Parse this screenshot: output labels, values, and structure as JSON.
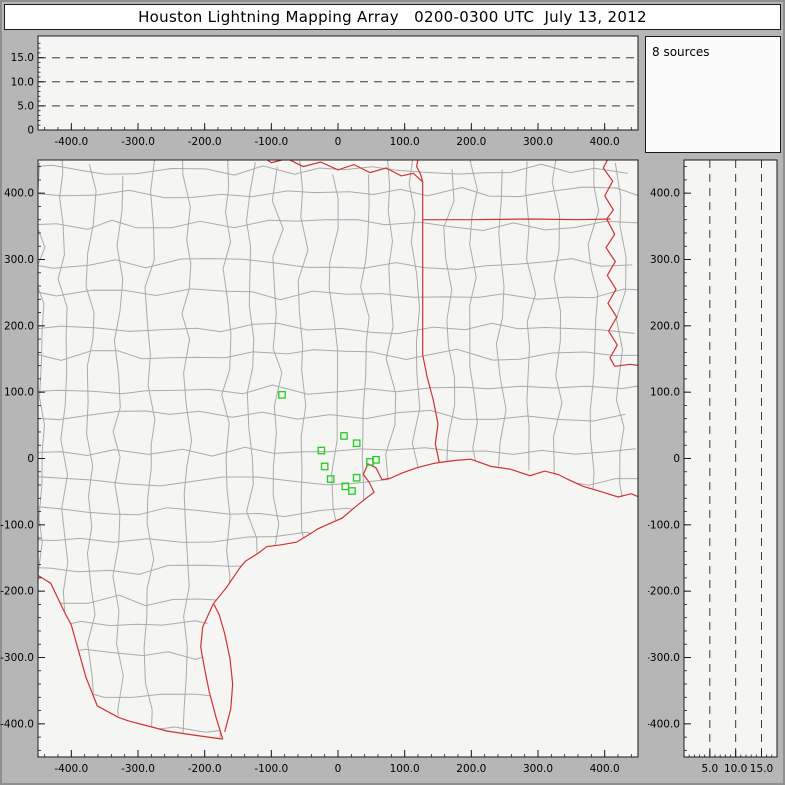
{
  "title": "Houston Lightning Mapping Array   0200-0300 UTC  July 13, 2012",
  "sources_box": {
    "label": "8 sources"
  },
  "colors": {
    "frame_gray": "#b6b6b6",
    "plot_bg": "#f5f5f4",
    "panel_border": "#1a1a1a",
    "county_gray": "#aaaaaa",
    "state_red": "#cc3333",
    "station_green": "#22cc22",
    "dash_dark": "#3a3a3a"
  },
  "chart_data": [
    {
      "type": "scatter",
      "name": "altitude_vs_eastwest",
      "xlim": [
        -450,
        450
      ],
      "ylim": [
        0,
        19.5
      ],
      "x_ticks": [
        -400,
        -300,
        -200,
        -100,
        0,
        100,
        200,
        300,
        400
      ],
      "x_tick_labels": [
        "-400.0",
        "-300.0",
        "-200.0",
        "-100.0",
        "0",
        "100.0",
        "200.0",
        "300.0",
        "400.0"
      ],
      "y_ticks": [
        0,
        5,
        10,
        15
      ],
      "y_tick_labels": [
        "0",
        "5.0",
        "10.0",
        "15.0"
      ],
      "dashed_y": [
        5,
        10,
        15
      ],
      "points": []
    },
    {
      "type": "scatter",
      "name": "plan_view_map",
      "xlim": [
        -450,
        450
      ],
      "ylim": [
        -450,
        450
      ],
      "x_ticks": [
        -400,
        -300,
        -200,
        -100,
        0,
        100,
        200,
        300,
        400
      ],
      "x_tick_labels": [
        "-400.0",
        "-300.0",
        "-200.0",
        "-100.0",
        "0",
        "100.0",
        "200.0",
        "300.0",
        "400.0"
      ],
      "y_ticks": [
        400,
        300,
        200,
        100,
        0,
        -100,
        -200,
        -300,
        -400
      ],
      "y_tick_labels": [
        "400.0",
        "300.0",
        "200.0",
        "100.0",
        "0",
        "-100.0",
        "-200.0",
        "-300.0",
        "-400.0"
      ],
      "stations": [
        [
          -84,
          96
        ],
        [
          -25,
          12
        ],
        [
          9,
          34
        ],
        [
          28,
          23
        ],
        [
          -20,
          -12
        ],
        [
          -11,
          -31
        ],
        [
          11,
          -42
        ],
        [
          28,
          -29
        ],
        [
          21,
          -49
        ],
        [
          48,
          -5
        ],
        [
          57,
          -2
        ]
      ],
      "land_polygon": [
        [
          -460,
          460
        ],
        [
          -460,
          -170
        ],
        [
          -431,
          -188
        ],
        [
          -400,
          -251
        ],
        [
          -361,
          -373
        ],
        [
          -313,
          -396
        ],
        [
          -256,
          -411
        ],
        [
          -173,
          -423
        ],
        [
          -193,
          -352
        ],
        [
          -206,
          -284
        ],
        [
          -187,
          -219
        ],
        [
          -139,
          -155
        ],
        [
          -107,
          -133
        ],
        [
          -62,
          -126
        ],
        [
          -30,
          -106
        ],
        [
          6,
          -90
        ],
        [
          54,
          -51
        ],
        [
          78,
          -30
        ],
        [
          141,
          -8
        ],
        [
          199,
          -1
        ],
        [
          258,
          -16
        ],
        [
          310,
          -19
        ],
        [
          368,
          -42
        ],
        [
          420,
          -58
        ],
        [
          460,
          -62
        ],
        [
          460,
          460
        ]
      ],
      "borders": [
        {
          "name": "rio-grande",
          "points": [
            [
              -460,
              -170
            ],
            [
              -431,
              -188
            ],
            [
              -411,
              -230
            ],
            [
              -400,
              -251
            ],
            [
              -378,
              -330
            ],
            [
              -361,
              -373
            ],
            [
              -330,
              -390
            ],
            [
              -313,
              -396
            ],
            [
              -282,
              -404
            ],
            [
              -256,
              -411
            ],
            [
              -216,
              -417
            ],
            [
              -173,
              -423
            ]
          ]
        },
        {
          "name": "red-river",
          "points": [
            [
              -120,
              460
            ],
            [
              -100,
              446
            ],
            [
              -76,
              452
            ],
            [
              -52,
              440
            ],
            [
              -26,
              447
            ],
            [
              0,
              435
            ],
            [
              24,
              443
            ],
            [
              48,
              431
            ],
            [
              72,
              438
            ],
            [
              95,
              426
            ],
            [
              113,
              430
            ],
            [
              127,
              417
            ]
          ]
        },
        {
          "name": "ok-ar-border",
          "points": [
            [
              121,
              460
            ],
            [
              118,
              440
            ],
            [
              124,
              428
            ],
            [
              127,
              417
            ]
          ]
        },
        {
          "name": "tx-east-border",
          "points": [
            [
              127,
              417
            ],
            [
              127,
              360
            ],
            [
              127,
              156
            ]
          ]
        },
        {
          "name": "sabine-river",
          "points": [
            [
              127,
              156
            ],
            [
              134,
              122
            ],
            [
              143,
              88
            ],
            [
              150,
              52
            ],
            [
              146,
              22
            ],
            [
              152,
              -6
            ]
          ]
        },
        {
          "name": "ar-la-border",
          "points": [
            [
              127,
              360
            ],
            [
              200,
              360
            ],
            [
              290,
              361
            ],
            [
              360,
              360
            ],
            [
              409,
              361
            ]
          ]
        },
        {
          "name": "mississippi-river",
          "points": [
            [
              409,
              460
            ],
            [
              398,
              438
            ],
            [
              412,
              418
            ],
            [
              400,
              396
            ],
            [
              413,
              375
            ],
            [
              403,
              361
            ],
            [
              415,
              338
            ],
            [
              402,
              318
            ],
            [
              416,
              297
            ],
            [
              404,
              276
            ],
            [
              417,
              255
            ],
            [
              405,
              234
            ],
            [
              418,
              213
            ],
            [
              406,
              192
            ],
            [
              419,
              171
            ],
            [
              408,
              152
            ],
            [
              415,
              139
            ]
          ]
        },
        {
          "name": "la-ms-border",
          "points": [
            [
              415,
              139
            ],
            [
              438,
              142
            ],
            [
              460,
              139
            ]
          ]
        },
        {
          "name": "gulf-coastline",
          "points": [
            [
              -173,
              -423
            ],
            [
              -183,
              -390
            ],
            [
              -193,
              -352
            ],
            [
              -200,
              -318
            ],
            [
              -206,
              -284
            ],
            [
              -203,
              -254
            ],
            [
              -187,
              -219
            ],
            [
              -167,
              -194
            ],
            [
              -148,
              -166
            ],
            [
              -139,
              -155
            ],
            [
              -120,
              -143
            ],
            [
              -107,
              -133
            ],
            [
              -84,
              -130
            ],
            [
              -62,
              -126
            ],
            [
              -44,
              -115
            ],
            [
              -30,
              -106
            ],
            [
              -10,
              -97
            ],
            [
              6,
              -90
            ],
            [
              27,
              -72
            ],
            [
              42,
              -60
            ],
            [
              54,
              -51
            ],
            [
              47,
              -36
            ],
            [
              38,
              -24
            ],
            [
              45,
              -8
            ],
            [
              57,
              -14
            ],
            [
              66,
              -32
            ],
            [
              78,
              -30
            ],
            [
              96,
              -22
            ],
            [
              118,
              -14
            ],
            [
              141,
              -8
            ],
            [
              152,
              -6
            ],
            [
              175,
              -3
            ],
            [
              199,
              -1
            ],
            [
              230,
              -12
            ],
            [
              258,
              -16
            ],
            [
              288,
              -26
            ],
            [
              310,
              -19
            ],
            [
              330,
              -24
            ],
            [
              344,
              -31
            ],
            [
              368,
              -42
            ],
            [
              395,
              -50
            ],
            [
              420,
              -58
            ],
            [
              440,
              -53
            ],
            [
              460,
              -62
            ]
          ]
        },
        {
          "name": "padre-island",
          "points": [
            [
              -170,
              -412
            ],
            [
              -161,
              -378
            ],
            [
              -158,
              -340
            ],
            [
              -162,
              -302
            ],
            [
              -170,
              -264
            ],
            [
              -178,
              -236
            ],
            [
              -186,
              -220
            ]
          ]
        }
      ]
    },
    {
      "type": "scatter",
      "name": "altitude_vs_northsouth",
      "xlim": [
        0,
        18
      ],
      "ylim": [
        -450,
        450
      ],
      "x_ticks": [
        5,
        10,
        15
      ],
      "x_tick_labels": [
        "5.0",
        "10.0",
        "15.0"
      ],
      "y_ticks": [
        400,
        300,
        200,
        100,
        0,
        -100,
        -200,
        -300,
        -400
      ],
      "y_tick_labels": [
        "400.0",
        "300.0",
        "200.0",
        "100.0",
        "0",
        "-100.0",
        "-200.0",
        "-300.0",
        "-400.0"
      ],
      "dashed_x": [
        5,
        10,
        15
      ],
      "points": []
    }
  ]
}
